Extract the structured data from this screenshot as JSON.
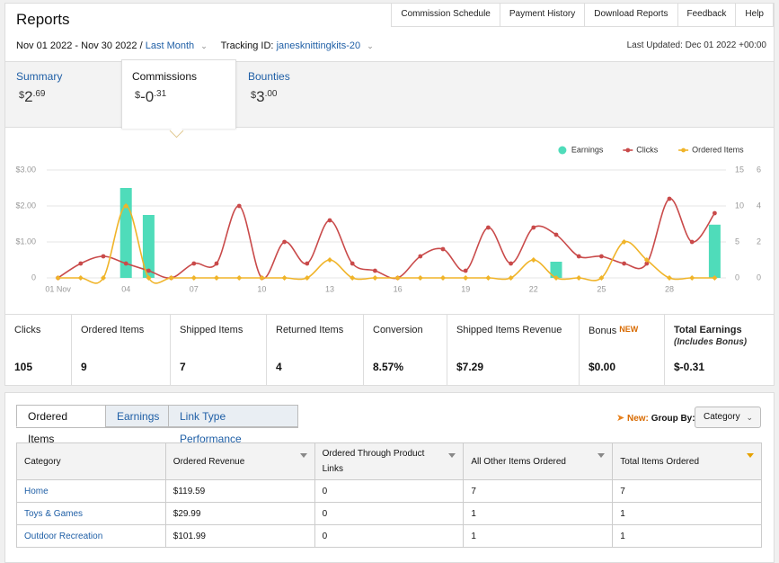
{
  "header": {
    "title": "Reports",
    "nav": [
      "Commission Schedule",
      "Payment History",
      "Download Reports",
      "Feedback",
      "Help"
    ],
    "date_range": "Nov 01 2022 - Nov 30 2022 /",
    "period": "Last Month",
    "tracking_label": "Tracking ID:",
    "tracking_id": "janesknittingkits-20",
    "last_updated": "Last Updated: Dec 01 2022 +00:00"
  },
  "summary_tabs": [
    {
      "label": "Summary",
      "currency": "$",
      "whole": "2",
      "cents": ".69"
    },
    {
      "label": "Commissions",
      "currency": "$",
      "whole": "-0",
      "cents": ".31"
    },
    {
      "label": "Bounties",
      "currency": "$",
      "whole": "3",
      "cents": ".00"
    }
  ],
  "chart_data": {
    "type": "combo",
    "categories": [
      "01 Nov",
      null,
      null,
      "04",
      null,
      null,
      "07",
      null,
      null,
      "10",
      null,
      null,
      "13",
      null,
      null,
      "16",
      null,
      null,
      "19",
      null,
      null,
      "22",
      null,
      null,
      "25",
      null,
      null,
      "28",
      null,
      null
    ],
    "series": [
      {
        "name": "Earnings",
        "type": "bar",
        "axis": "y",
        "color": "#4fdcba",
        "values": [
          0,
          0,
          0,
          2.5,
          1.75,
          0,
          0,
          0,
          0,
          0,
          0,
          0,
          0,
          0,
          0,
          0,
          0,
          0,
          0,
          0,
          0,
          0,
          0.45,
          0,
          0,
          0,
          0,
          0,
          0,
          1.48
        ]
      },
      {
        "name": "Clicks",
        "type": "line",
        "axis": "y2",
        "color": "#c94a4a",
        "values": [
          0,
          2,
          3,
          2,
          1,
          0,
          2,
          2,
          10,
          0,
          5,
          2,
          8,
          2,
          1,
          0,
          3,
          4,
          1,
          7,
          2,
          7,
          6,
          3,
          3,
          2,
          2,
          11,
          5,
          9
        ]
      },
      {
        "name": "Ordered Items",
        "type": "line",
        "axis": "y3",
        "color": "#f0b429",
        "values": [
          0,
          0,
          0,
          4,
          0,
          0,
          0,
          0,
          0,
          0,
          0,
          0,
          1,
          0,
          0,
          0,
          0,
          0,
          0,
          0,
          0,
          1,
          0,
          0,
          0,
          2,
          1,
          0,
          0,
          0
        ]
      }
    ],
    "ylim": [
      0,
      3
    ],
    "yticks": [
      0,
      {
        "value": 1,
        "label": "$1.00"
      },
      {
        "value": 2,
        "label": "$2.00"
      },
      {
        "value": 3,
        "label": "$3.00"
      }
    ],
    "y2lim": [
      0,
      15
    ],
    "y2ticks": [
      0,
      5,
      10,
      15
    ],
    "y3lim": [
      0,
      6
    ],
    "y3ticks": [
      0,
      2,
      4,
      6
    ],
    "grid": true,
    "legend": "top-right"
  },
  "stats": [
    {
      "label": "Clicks",
      "value": "105"
    },
    {
      "label": "Ordered Items",
      "value": "9"
    },
    {
      "label": "Shipped Items",
      "value": "7"
    },
    {
      "label": "Returned Items",
      "value": "4"
    },
    {
      "label": "Conversion",
      "value": "8.57%"
    },
    {
      "label": "Shipped Items Revenue",
      "value": "$7.29"
    },
    {
      "label": "Bonus",
      "badge": "NEW",
      "value": "$0.00"
    },
    {
      "label": "Total Earnings",
      "note": "(Includes Bonus)",
      "value": "$-0.31"
    }
  ],
  "report_tabs": [
    "Ordered Items",
    "Earnings",
    "Link Type Performance"
  ],
  "group_by": {
    "new": "New:",
    "label": "Group By:",
    "value": "Category"
  },
  "table": {
    "columns": [
      "Category",
      "Ordered Revenue",
      "Ordered Through Product Links",
      "All Other Items Ordered",
      "Total Items Ordered"
    ],
    "rows": [
      [
        "Home",
        "$119.59",
        "0",
        "7",
        "7"
      ],
      [
        "Toys & Games",
        "$29.99",
        "0",
        "1",
        "1"
      ],
      [
        "Outdoor Recreation",
        "$101.99",
        "0",
        "1",
        "1"
      ]
    ]
  }
}
